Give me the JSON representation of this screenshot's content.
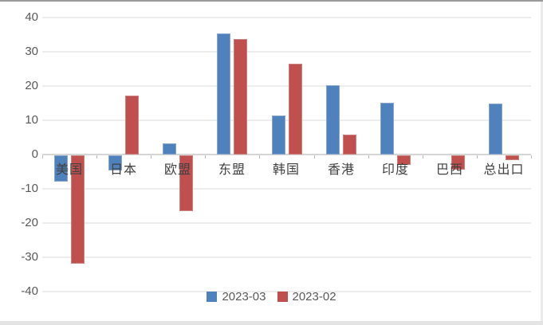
{
  "chart_data": {
    "type": "bar",
    "title": "",
    "xlabel": "",
    "ylabel": "",
    "categories": [
      "美国",
      "日本",
      "欧盟",
      "东盟",
      "韩国",
      "香港",
      "印度",
      "巴西",
      "总出口"
    ],
    "series": [
      {
        "name": "2023-03",
        "color": "#4F81BD",
        "border_color": "#89A6CD",
        "values": [
          -7.7,
          -4.5,
          3.3,
          35.3,
          11.3,
          20.2,
          15.2,
          0,
          14.8
        ]
      },
      {
        "name": "2023-02",
        "color": "#C0504D",
        "border_color": "#CD817E",
        "values": [
          -31.7,
          17.2,
          -16.2,
          33.7,
          26.4,
          5.9,
          -2.8,
          -4.3,
          -1.3
        ]
      }
    ],
    "ylim": [
      -40,
      40
    ],
    "ytick_step": 10,
    "ytick_labels": [
      "-40",
      "-30",
      "-20",
      "-10",
      "0",
      "10",
      "20",
      "30",
      "40"
    ],
    "grid": true,
    "legend_position": "bottom",
    "legend_items": [
      "2023-03",
      "2023-02"
    ]
  },
  "colors": {
    "series_blue": "#4F81BD",
    "series_red": "#C0504D",
    "gridline": "#EDEDED",
    "axis_line": "#D6D6D6",
    "tick_label": "#595959",
    "category_label": "#404040",
    "background": "#FFFFFF"
  }
}
